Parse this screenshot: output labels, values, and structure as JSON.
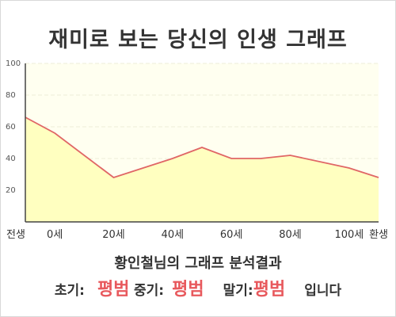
{
  "title": "재미로 보는 당신의 인생 그래프",
  "chart_data": {
    "type": "area",
    "x_ticks": [
      {
        "label": "전생",
        "x": -10
      },
      {
        "label": "0세",
        "x": 0
      },
      {
        "label": "20세",
        "x": 20
      },
      {
        "label": "40세",
        "x": 40
      },
      {
        "label": "60세",
        "x": 60
      },
      {
        "label": "80세",
        "x": 80
      },
      {
        "label": "100세",
        "x": 100
      },
      {
        "label": "환생",
        "x": 110
      }
    ],
    "y_ticks": [
      "20",
      "40",
      "60",
      "80",
      "100"
    ],
    "ylim": [
      0,
      100
    ],
    "xlim": [
      -10,
      110
    ],
    "points": [
      {
        "x": -10,
        "y": 66
      },
      {
        "x": 0,
        "y": 56
      },
      {
        "x": 20,
        "y": 28
      },
      {
        "x": 40,
        "y": 40
      },
      {
        "x": 50,
        "y": 47
      },
      {
        "x": 60,
        "y": 40
      },
      {
        "x": 70,
        "y": 40
      },
      {
        "x": 80,
        "y": 42
      },
      {
        "x": 100,
        "y": 34
      },
      {
        "x": 110,
        "y": 28
      }
    ],
    "grid": true,
    "colors": {
      "line": "#e06666",
      "fill": "#ffffc0",
      "plot_bg": "#fffff0"
    }
  },
  "result": {
    "title": "황인철님의 그래프 분석결과",
    "early_label": "초기:",
    "early_value": "평범",
    "mid_label": "중기:",
    "mid_value": "평범",
    "late_label": "말기:",
    "late_value": "평범",
    "suffix": "입니다"
  }
}
